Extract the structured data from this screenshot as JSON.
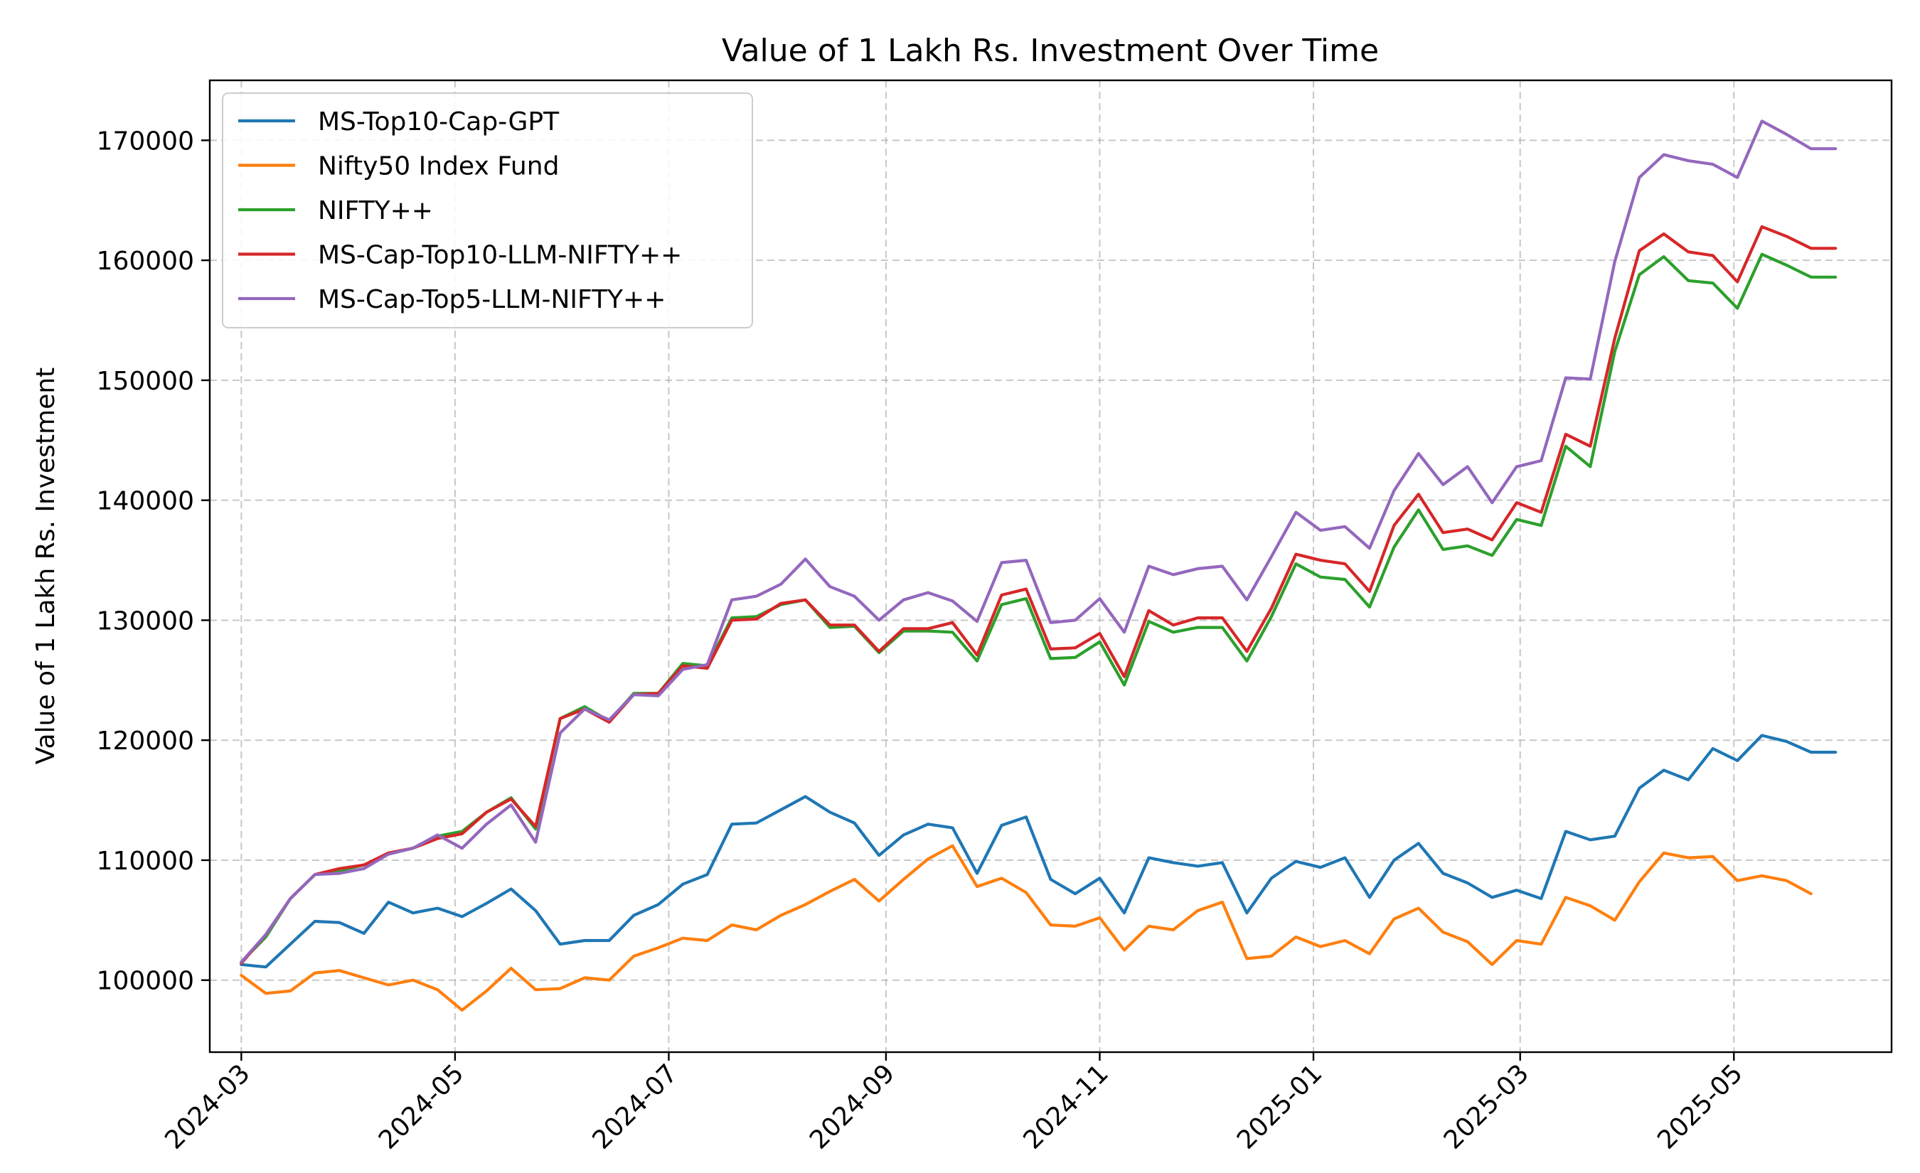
{
  "chart_data": {
    "type": "line",
    "title": "Value of 1 Lakh Rs. Investment Over Time",
    "xlabel": "",
    "ylabel": "Value of 1 Lakh Rs. Investment",
    "xlim": [
      "2024-02-21",
      "2025-06-15"
    ],
    "ylim": [
      94000,
      175000
    ],
    "x_ticks": [
      "2024-03",
      "2024-05",
      "2024-07",
      "2024-09",
      "2024-11",
      "2025-01",
      "2025-03",
      "2025-05"
    ],
    "y_ticks": [
      100000,
      110000,
      120000,
      130000,
      140000,
      150000,
      160000,
      170000
    ],
    "grid": true,
    "legend_position": "upper-left",
    "x": [
      "2024-03-01",
      "2024-03-08",
      "2024-03-15",
      "2024-03-22",
      "2024-03-29",
      "2024-04-05",
      "2024-04-12",
      "2024-04-19",
      "2024-04-26",
      "2024-05-03",
      "2024-05-10",
      "2024-05-17",
      "2024-05-24",
      "2024-05-31",
      "2024-06-07",
      "2024-06-14",
      "2024-06-21",
      "2024-06-28",
      "2024-07-05",
      "2024-07-12",
      "2024-07-19",
      "2024-07-26",
      "2024-08-02",
      "2024-08-09",
      "2024-08-16",
      "2024-08-23",
      "2024-08-30",
      "2024-09-06",
      "2024-09-13",
      "2024-09-20",
      "2024-09-27",
      "2024-10-04",
      "2024-10-11",
      "2024-10-18",
      "2024-10-25",
      "2024-11-01",
      "2024-11-08",
      "2024-11-15",
      "2024-11-22",
      "2024-11-29",
      "2024-12-06",
      "2024-12-13",
      "2024-12-20",
      "2024-12-27",
      "2025-01-03",
      "2025-01-10",
      "2025-01-17",
      "2025-01-24",
      "2025-01-31",
      "2025-02-07",
      "2025-02-14",
      "2025-02-21",
      "2025-02-28",
      "2025-03-07",
      "2025-03-14",
      "2025-03-21",
      "2025-03-28",
      "2025-04-04",
      "2025-04-11",
      "2025-04-18",
      "2025-04-25",
      "2025-05-02",
      "2025-05-09",
      "2025-05-16",
      "2025-05-23",
      "2025-05-30"
    ],
    "series": [
      {
        "name": "MS-Top10-Cap-GPT",
        "color": "#1f77b4",
        "values": [
          101300,
          101100,
          103000,
          104900,
          104800,
          103900,
          106500,
          105600,
          106000,
          105300,
          106400,
          107600,
          105800,
          103000,
          103300,
          103300,
          105400,
          106300,
          108000,
          108800,
          113000,
          113100,
          114200,
          115300,
          114000,
          113100,
          110400,
          112100,
          113000,
          112700,
          108900,
          112900,
          113600,
          108400,
          107200,
          108500,
          105600,
          110200,
          109800,
          109500,
          109800,
          105600,
          108500,
          109900,
          109400,
          110200,
          106900,
          110000,
          111400,
          108900,
          108100,
          106900,
          107500,
          106800,
          112400,
          111700,
          112000,
          116000,
          117500,
          116700,
          119300,
          118300,
          120400,
          119900,
          119000,
          119000
        ]
      },
      {
        "name": "Nifty50 Index Fund",
        "color": "#ff7f0e",
        "values": [
          100400,
          98900,
          99100,
          100600,
          100800,
          100200,
          99600,
          100000,
          99200,
          97500,
          99100,
          101000,
          99200,
          99300,
          100200,
          100000,
          102000,
          102700,
          103500,
          103300,
          104600,
          104200,
          105400,
          106300,
          107400,
          108400,
          106600,
          108400,
          110100,
          111200,
          107800,
          108500,
          107300,
          104600,
          104500,
          105200,
          102500,
          104500,
          104200,
          105800,
          106500,
          101800,
          102000,
          103600,
          102800,
          103300,
          102200,
          105100,
          106000,
          104000,
          103200,
          101300,
          103300,
          103000,
          106900,
          106200,
          105000,
          108200,
          110600,
          110200,
          110300,
          108300,
          108700,
          108300,
          107200,
          null
        ]
      },
      {
        "name": "NIFTY++",
        "color": "#2ca02c",
        "values": [
          101500,
          103600,
          106800,
          108800,
          109100,
          109600,
          110500,
          111000,
          112000,
          112400,
          114000,
          115200,
          112600,
          121800,
          122800,
          121600,
          123900,
          123900,
          126400,
          126200,
          130200,
          130300,
          131300,
          131700,
          129400,
          129500,
          127300,
          129100,
          129100,
          129000,
          126600,
          131300,
          131800,
          126800,
          126900,
          128200,
          124600,
          129900,
          129000,
          129400,
          129400,
          126600,
          130300,
          134700,
          133600,
          133400,
          131100,
          136100,
          139200,
          135900,
          136200,
          135400,
          138400,
          137900,
          144500,
          142800,
          152400,
          158800,
          160300,
          158300,
          158100,
          156000,
          160500,
          159600,
          158600,
          158600
        ]
      },
      {
        "name": "MS-Cap-Top10-LLM-NIFTY++",
        "color": "#d62728",
        "values": [
          101400,
          103800,
          106800,
          108800,
          109300,
          109600,
          110600,
          111000,
          111800,
          112200,
          114000,
          115100,
          112800,
          121800,
          122600,
          121500,
          123800,
          123900,
          126200,
          126000,
          130000,
          130100,
          131400,
          131700,
          129600,
          129600,
          127400,
          129300,
          129300,
          129800,
          127100,
          132100,
          132600,
          127600,
          127700,
          128900,
          125300,
          130800,
          129600,
          130200,
          130200,
          127400,
          131000,
          135500,
          135000,
          134700,
          132400,
          137900,
          140500,
          137300,
          137600,
          136700,
          139800,
          139000,
          145500,
          144500,
          153500,
          160800,
          162200,
          160700,
          160400,
          158200,
          162800,
          162000,
          161000,
          161000
        ]
      },
      {
        "name": "MS-Cap-Top5-LLM-NIFTY++",
        "color": "#9467bd",
        "values": [
          101500,
          103800,
          106800,
          108800,
          108900,
          109300,
          110500,
          111000,
          112100,
          111000,
          113000,
          114600,
          111500,
          120600,
          122600,
          121700,
          123800,
          123700,
          125900,
          126300,
          131700,
          132000,
          133000,
          135100,
          132800,
          132000,
          130000,
          131700,
          132300,
          131600,
          129900,
          134800,
          135000,
          129800,
          130000,
          131800,
          129000,
          134500,
          133800,
          134300,
          134500,
          131700,
          135300,
          139000,
          137500,
          137800,
          136000,
          140800,
          143900,
          141300,
          142800,
          139800,
          142800,
          143300,
          150200,
          150100,
          159900,
          166900,
          168800,
          168300,
          168000,
          166900,
          171600,
          170500,
          169300,
          169300
        ]
      }
    ]
  }
}
